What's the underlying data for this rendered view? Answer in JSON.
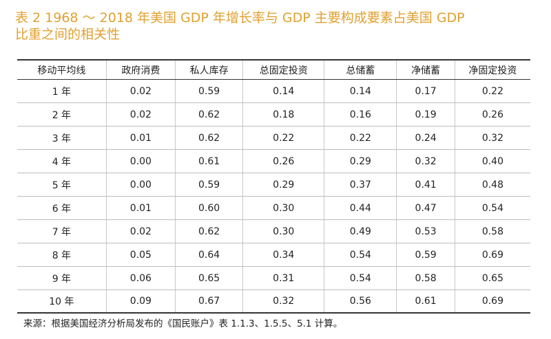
{
  "title": {
    "line1": "表 2   1968 ～ 2018 年美国 GDP 年增长率与 GDP 主要构成要素占美国 GDP",
    "line2": "比重之间的相关性"
  },
  "table": {
    "headers": [
      "移动平均线",
      "政府消费",
      "私人库存",
      "总固定投资",
      "总储蓄",
      "净储蓄",
      "净固定投资"
    ],
    "rows": [
      [
        "1 年",
        "0.02",
        "0.59",
        "0.14",
        "0.14",
        "0.17",
        "0.22"
      ],
      [
        "2 年",
        "0.02",
        "0.62",
        "0.18",
        "0.16",
        "0.19",
        "0.26"
      ],
      [
        "3 年",
        "0.01",
        "0.62",
        "0.22",
        "0.22",
        "0.24",
        "0.32"
      ],
      [
        "4 年",
        "0.00",
        "0.61",
        "0.26",
        "0.29",
        "0.32",
        "0.40"
      ],
      [
        "5 年",
        "0.00",
        "0.59",
        "0.29",
        "0.37",
        "0.41",
        "0.48"
      ],
      [
        "6 年",
        "0.01",
        "0.60",
        "0.30",
        "0.44",
        "0.47",
        "0.54"
      ],
      [
        "7 年",
        "0.02",
        "0.62",
        "0.30",
        "0.49",
        "0.53",
        "0.58"
      ],
      [
        "8 年",
        "0.05",
        "0.64",
        "0.34",
        "0.54",
        "0.59",
        "0.69"
      ],
      [
        "9 年",
        "0.06",
        "0.65",
        "0.31",
        "0.54",
        "0.58",
        "0.65"
      ],
      [
        "10 年",
        "0.09",
        "0.67",
        "0.32",
        "0.56",
        "0.61",
        "0.69"
      ]
    ]
  },
  "source": "来源：根据美国经济分析局发布的《国民账户》表 1.1.3、1.5.5、5.1 计算。",
  "colors": {
    "title": "#e0a030",
    "text": "#222222",
    "rule": "#333333"
  }
}
